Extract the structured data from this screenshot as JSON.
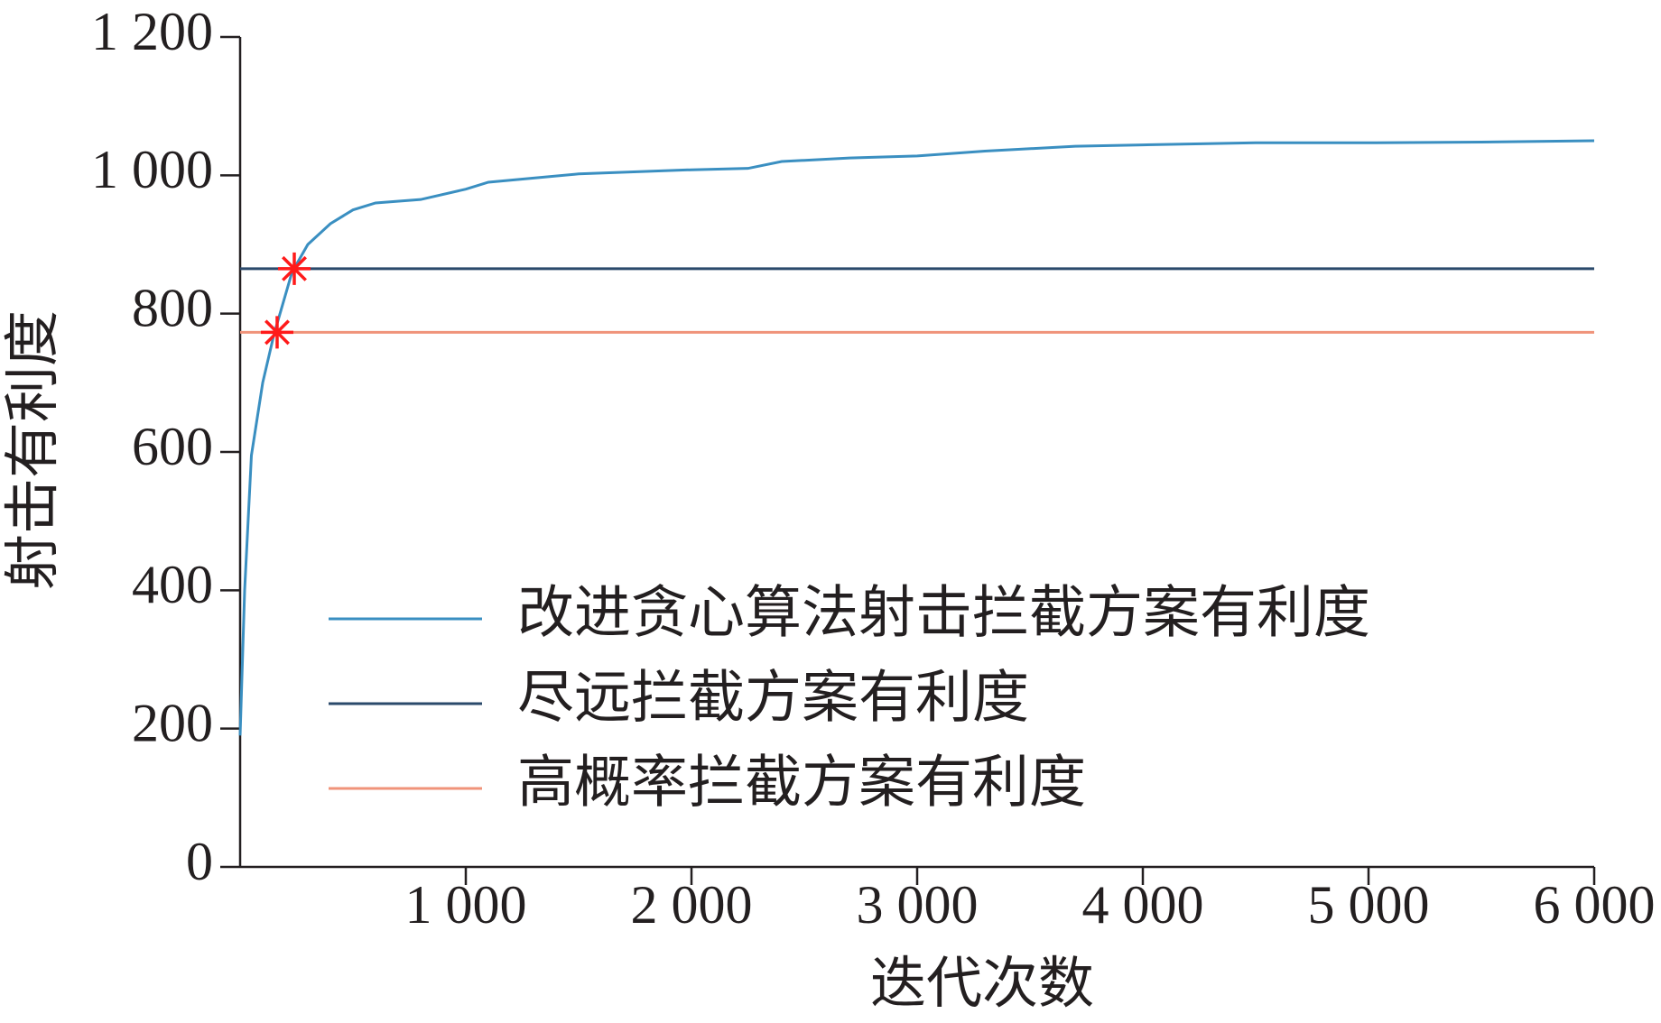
{
  "chart_data": {
    "type": "line",
    "xlabel": "迭代次数",
    "ylabel": "射击有利度",
    "xlim": [
      0,
      6000
    ],
    "ylim": [
      0,
      1200
    ],
    "xticks": [
      {
        "value": 1000,
        "label": "1 000"
      },
      {
        "value": 2000,
        "label": "2 000"
      },
      {
        "value": 3000,
        "label": "3 000"
      },
      {
        "value": 4000,
        "label": "4 000"
      },
      {
        "value": 5000,
        "label": "5 000"
      },
      {
        "value": 6000,
        "label": "6 000"
      }
    ],
    "yticks": [
      0,
      200,
      400,
      600,
      800,
      {
        "value": 1000,
        "label": "1 000"
      },
      {
        "value": 1200,
        "label": "1 200"
      }
    ],
    "legend": "lower right",
    "series": [
      {
        "name": "改进贪心算法射击拦截方案有利度",
        "color": "#3a8fc1",
        "x": [
          0,
          20,
          50,
          100,
          150,
          230,
          300,
          400,
          500,
          600,
          800,
          1000,
          1100,
          1500,
          2000,
          2250,
          2400,
          2700,
          3000,
          3300,
          3700,
          4000,
          4500,
          5000,
          5500,
          6000
        ],
        "values": [
          190,
          400,
          595,
          700,
          770,
          860,
          900,
          930,
          950,
          960,
          965,
          980,
          990,
          1002,
          1008,
          1010,
          1020,
          1025,
          1028,
          1035,
          1042,
          1044,
          1047,
          1047,
          1048,
          1050
        ]
      },
      {
        "name": "尽远拦截方案有利度",
        "color": "#2b4a6b",
        "x": [
          0,
          6000
        ],
        "values": [
          865,
          865
        ]
      },
      {
        "name": "高概率拦截方案有利度",
        "color": "#f0937a",
        "x": [
          0,
          6000
        ],
        "values": [
          773,
          773
        ]
      }
    ],
    "markers": {
      "color": "#ff1a1a",
      "x": [
        240,
        164
      ],
      "values": [
        865,
        773
      ]
    }
  }
}
